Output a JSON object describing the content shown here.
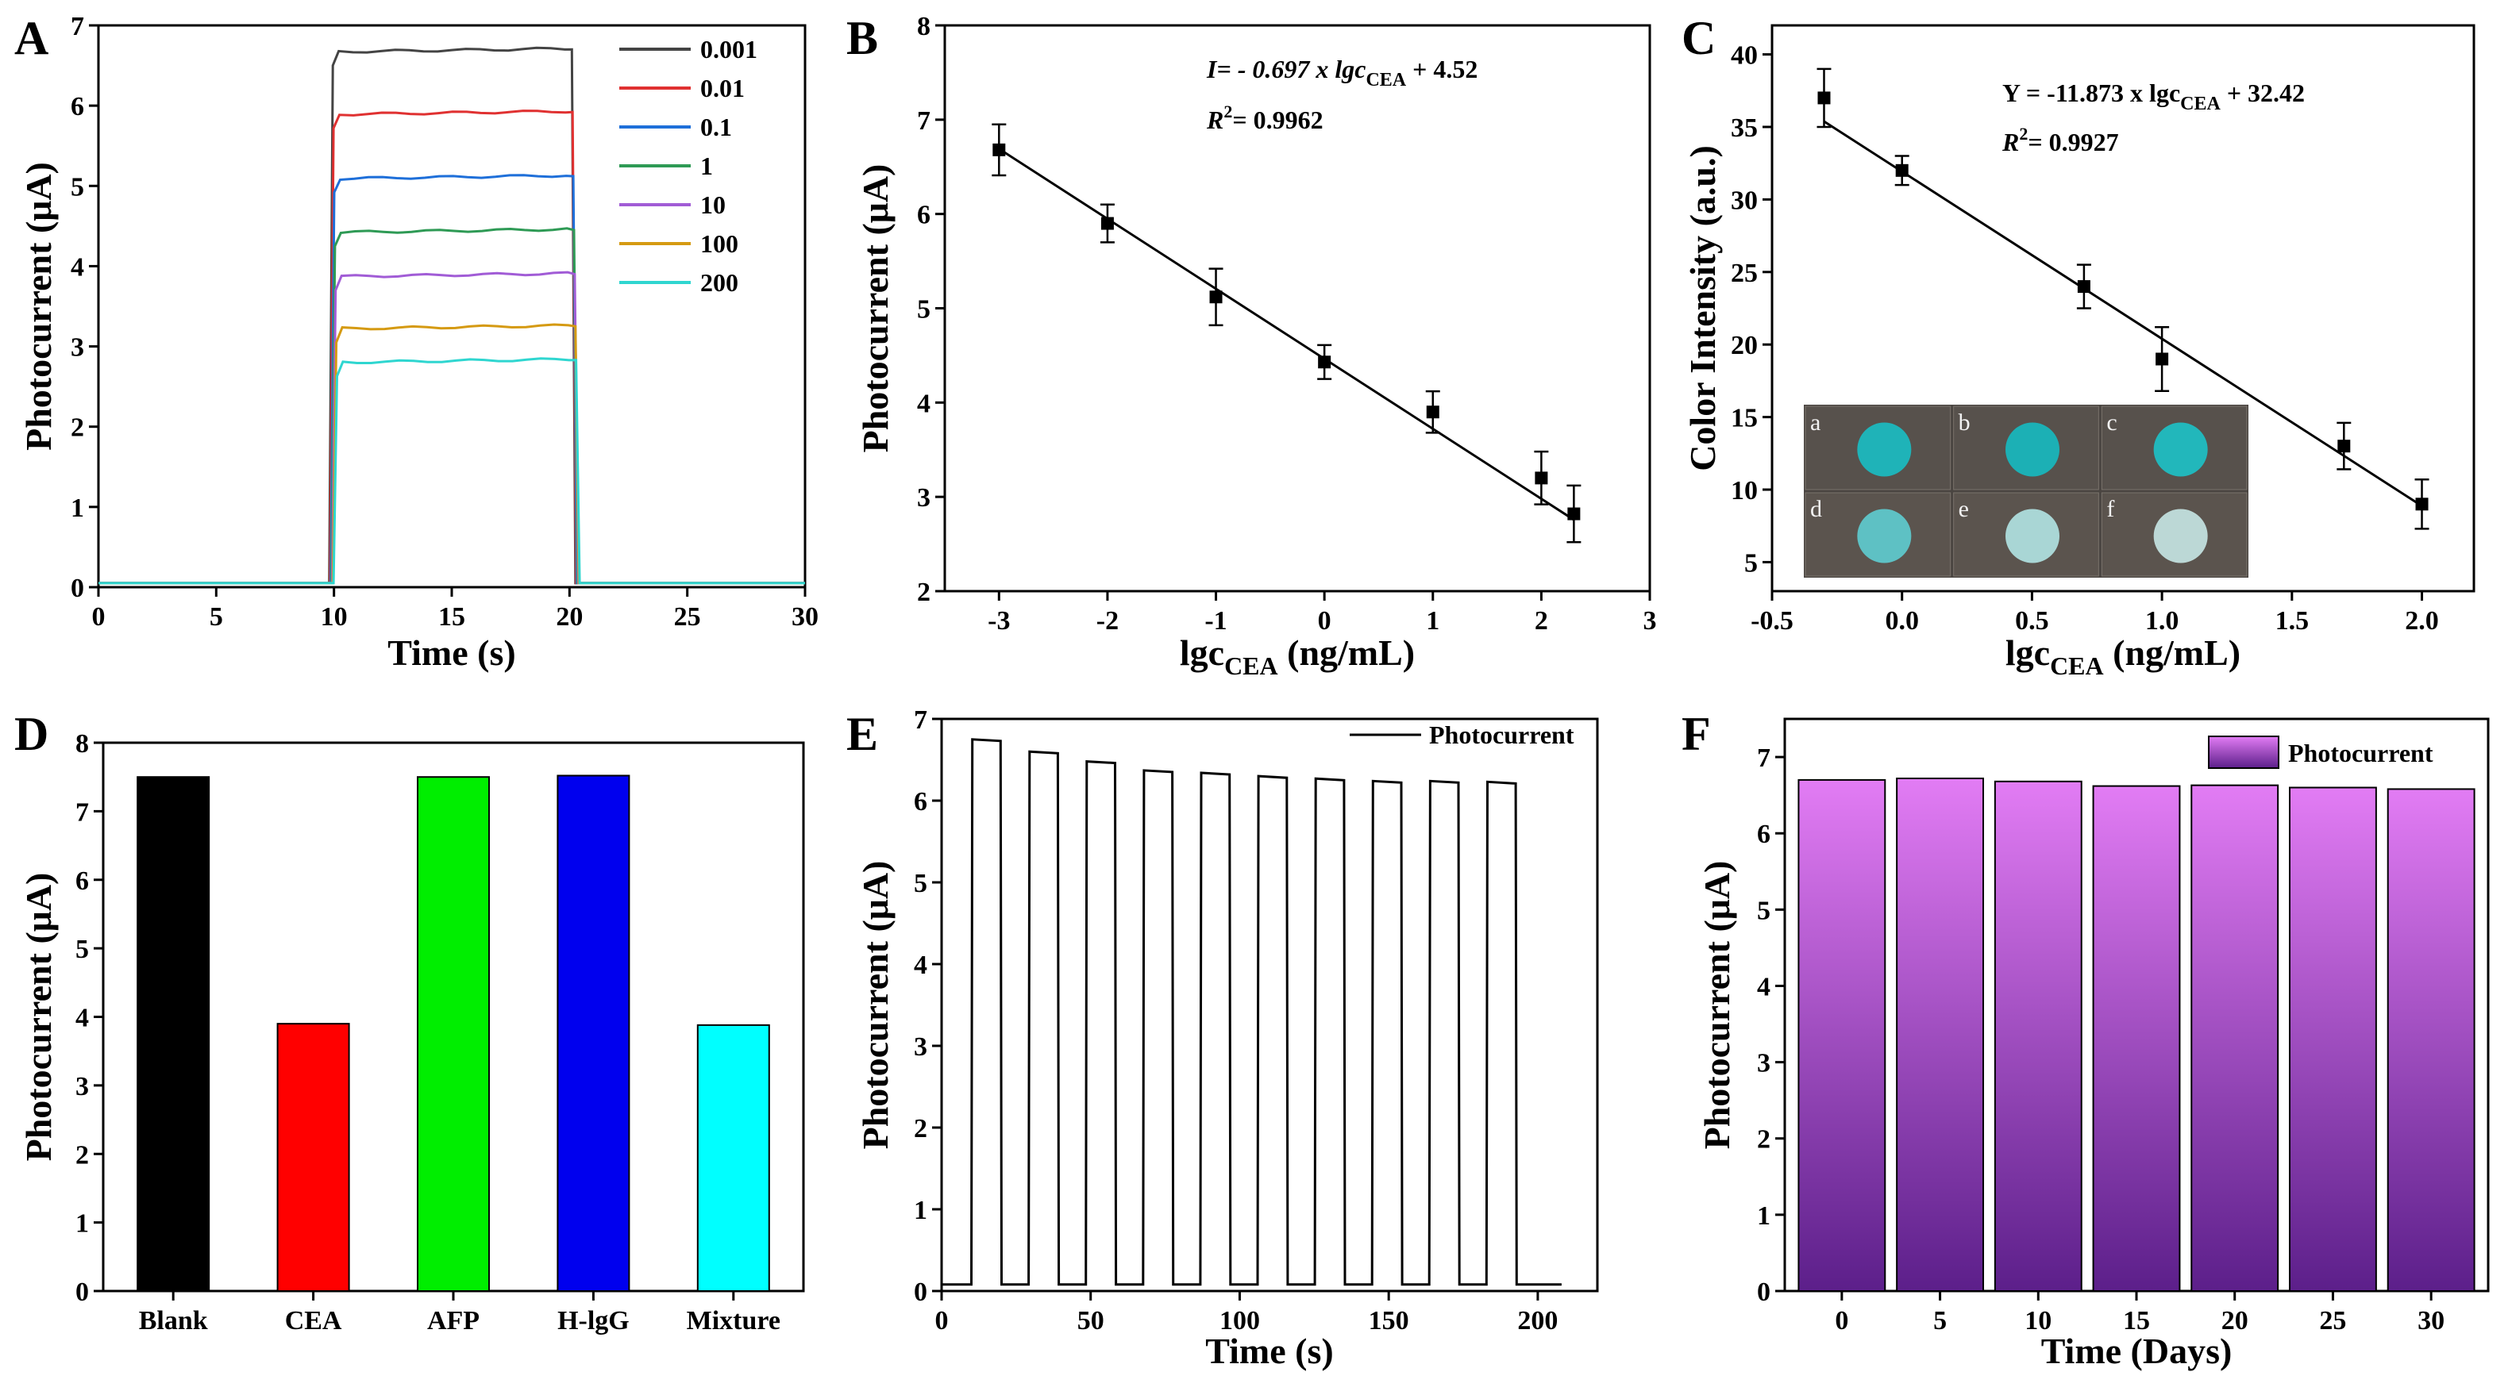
{
  "chart_data": [
    {
      "panel": "A",
      "type": "line",
      "xlabel": "Time (s)",
      "ylabel": "Photocurrent (μA)",
      "xlim": [
        0,
        30
      ],
      "ylim": [
        0,
        7
      ],
      "xticks": [
        "0",
        "5",
        "10",
        "15",
        "20",
        "25",
        "30"
      ],
      "yticks": [
        "0",
        "1",
        "2",
        "3",
        "4",
        "5",
        "6",
        "7"
      ],
      "light_on_s": 9.8,
      "light_off_s": 20.1,
      "baseline": 0.05,
      "series": [
        {
          "name": "0.001",
          "plateau": 6.7,
          "color": "#444444"
        },
        {
          "name": "0.01",
          "plateau": 5.92,
          "color": "#e03131"
        },
        {
          "name": "0.1",
          "plateau": 5.12,
          "color": "#1e6fd9"
        },
        {
          "name": "1",
          "plateau": 4.45,
          "color": "#2e9a55"
        },
        {
          "name": "10",
          "plateau": 3.9,
          "color": "#a15cd6"
        },
        {
          "name": "100",
          "plateau": 3.25,
          "color": "#d59a12"
        },
        {
          "name": "200",
          "plateau": 2.83,
          "color": "#2fd6d0"
        }
      ]
    },
    {
      "panel": "B",
      "type": "scatter",
      "xlabel_main": "lgc",
      "xlabel_sub": "CEA",
      "xlabel_unit": " (ng/mL)",
      "ylabel": "Photocurrent (μA)",
      "xlim": [
        -3.5,
        3
      ],
      "ylim": [
        2,
        8
      ],
      "xticks": [
        "-3",
        "-2",
        "-1",
        "0",
        "1",
        "2",
        "3"
      ],
      "yticks": [
        "2",
        "3",
        "4",
        "5",
        "6",
        "7",
        "8"
      ],
      "x": [
        -3,
        -2,
        -1,
        0,
        1,
        2,
        2.3
      ],
      "y": [
        6.68,
        5.9,
        5.12,
        4.43,
        3.9,
        3.2,
        2.82
      ],
      "err": [
        0.27,
        0.2,
        0.3,
        0.18,
        0.22,
        0.28,
        0.3
      ],
      "fit": {
        "slope": -0.697,
        "intercept": 4.52
      },
      "equation": "I= - 0.697 x lgc",
      "equation_sub": "CEA",
      "equation_tail": " + 4.52",
      "r2": "R",
      "r2_sup": "2",
      "r2_value": "= 0.9962"
    },
    {
      "panel": "C",
      "type": "scatter",
      "xlabel_main": "lgc",
      "xlabel_sub": "CEA",
      "xlabel_unit": " (ng/mL)",
      "ylabel": "Color Intensity (a.u.)",
      "xlim": [
        -0.5,
        2.2
      ],
      "ylim": [
        3,
        42
      ],
      "xticks": [
        "-0.5",
        "0.0",
        "0.5",
        "1.0",
        "1.5",
        "2.0"
      ],
      "yticks": [
        "5",
        "10",
        "15",
        "20",
        "25",
        "30",
        "35",
        "40"
      ],
      "x": [
        -0.3,
        0,
        0.7,
        1.0,
        1.7,
        2.0
      ],
      "y": [
        37,
        32,
        24,
        19,
        13,
        9
      ],
      "err": [
        2,
        1,
        1.5,
        2.2,
        1.6,
        1.7
      ],
      "fit": {
        "slope": -11.873,
        "intercept": 32.42
      },
      "equation": "Y = -11.873 x lgc",
      "equation_sub": "CEA",
      "equation_tail": " + 32.42",
      "r2": "R",
      "r2_sup": "2",
      "r2_value": "= 0.9927",
      "inset_labels": [
        "a",
        "b",
        "c",
        "d",
        "e",
        "f"
      ],
      "inset_colors": [
        "#1fb3b8",
        "#1cb0b5",
        "#22b7bb",
        "#5ec1c4",
        "#a9d6d5",
        "#bcd8d6"
      ]
    },
    {
      "panel": "D",
      "type": "bar",
      "ylabel": "Photocurrent (μA)",
      "ylim": [
        0,
        8
      ],
      "yticks": [
        "0",
        "1",
        "2",
        "3",
        "4",
        "5",
        "6",
        "7",
        "8"
      ],
      "categories": [
        "Blank",
        "CEA",
        "AFP",
        "H-lgG",
        "Mixture"
      ],
      "values": [
        7.5,
        3.9,
        7.5,
        7.52,
        3.88
      ],
      "colors": [
        "#000000",
        "#ff0000",
        "#00ee00",
        "#0000ee",
        "#00ffff"
      ]
    },
    {
      "panel": "E",
      "type": "line",
      "xlabel": "Time (s)",
      "ylabel": "Photocurrent (μA)",
      "xlim": [
        0,
        220
      ],
      "ylim": [
        0,
        7
      ],
      "xticks": [
        "0",
        "50",
        "100",
        "150",
        "200"
      ],
      "yticks": [
        "0",
        "1",
        "2",
        "3",
        "4",
        "5",
        "6",
        "7"
      ],
      "legend": "Photocurrent",
      "pulse_peaks": [
        6.75,
        6.6,
        6.48,
        6.37,
        6.34,
        6.3,
        6.27,
        6.24,
        6.24,
        6.23
      ],
      "baseline": 0.08
    },
    {
      "panel": "F",
      "type": "bar",
      "xlabel": "Time (Days)",
      "ylabel": "Photocurrent (μA)",
      "ylim": [
        0,
        7.5
      ],
      "yticks": [
        "0",
        "1",
        "2",
        "3",
        "4",
        "5",
        "6",
        "7"
      ],
      "categories": [
        "0",
        "5",
        "10",
        "15",
        "20",
        "25",
        "30"
      ],
      "values": [
        6.7,
        6.72,
        6.68,
        6.62,
        6.63,
        6.6,
        6.58
      ],
      "legend": "Photocurrent",
      "color_top": "#e27cf4",
      "color_bottom": "#5c1f8a"
    }
  ]
}
